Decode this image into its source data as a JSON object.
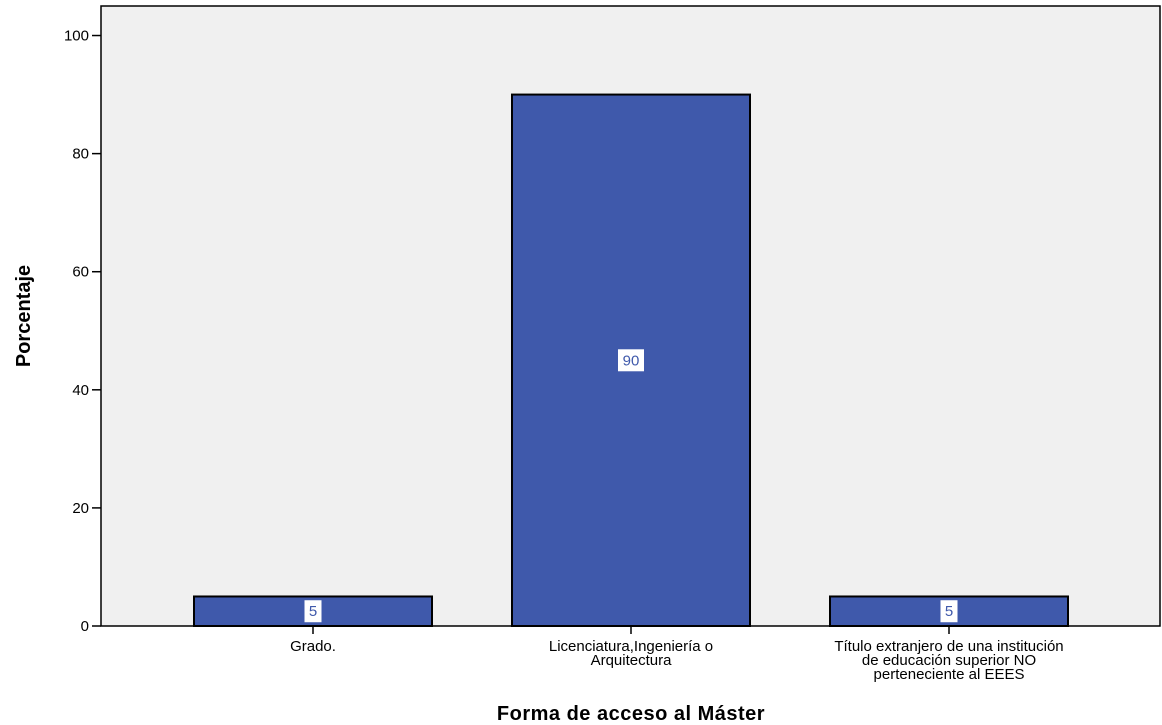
{
  "chart_data": {
    "type": "bar",
    "categories": [
      [
        "Grado."
      ],
      [
        "Licenciatura,Ingeniería o",
        "Arquitectura"
      ],
      [
        "Título extranjero de una institución",
        "de educación superior NO",
        "perteneciente al EEES"
      ]
    ],
    "values": [
      5,
      90,
      5
    ],
    "data_labels": [
      "5",
      "90",
      "5"
    ],
    "xlabel": "Forma de acceso al Máster",
    "ylabel": "Porcentaje",
    "ylim": [
      0,
      105
    ],
    "yticks": [
      0,
      20,
      40,
      60,
      80,
      100
    ],
    "grid": false,
    "colors": {
      "bar": "#3f59ab",
      "plot_background": "#f0f0f0",
      "label_text": "#3f59ab",
      "label_background": "#ffffff"
    }
  }
}
